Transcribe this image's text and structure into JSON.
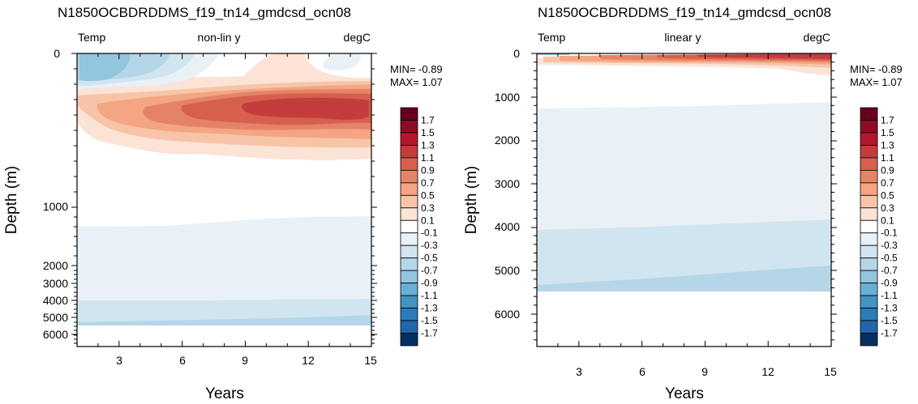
{
  "chart_data": [
    {
      "type": "contour",
      "title": "N1850OCBDRDDMS_f19_tn14_gmdcsd_ocn08",
      "left_label": "Temp",
      "center_label": "non-lin y",
      "right_label": "degC",
      "xlabel": "Years",
      "ylabel": "Depth (m)",
      "xlim": [
        1,
        15
      ],
      "ylim": [
        0,
        6500
      ],
      "x_ticks": [
        "3",
        "6",
        "9",
        "12",
        "15"
      ],
      "y_ticks": [
        "0",
        "1000",
        "2000",
        "3000",
        "4000",
        "5000",
        "6000"
      ],
      "y_scale": "non-linear",
      "min_label": "MIN= -0.89",
      "max_label": "MAX=  1.07",
      "features": [
        {
          "name": "surface cold anomaly",
          "value": -0.7,
          "years": [
            1,
            4
          ],
          "depth_m": [
            0,
            100
          ]
        },
        {
          "name": "subsurface warm anomaly",
          "value": 1.1,
          "years": [
            4,
            15
          ],
          "depth_m": [
            200,
            500
          ]
        },
        {
          "name": "deep cool layer",
          "value": -0.1,
          "years": [
            1,
            15
          ],
          "depth_m": [
            1100,
            4000
          ]
        },
        {
          "name": "abyssal cool layer",
          "value": -0.5,
          "years": [
            1,
            15
          ],
          "depth_m": [
            4000,
            5500
          ]
        }
      ]
    },
    {
      "type": "contour",
      "title": "N1850OCBDRDDMS_f19_tn14_gmdcsd_ocn08",
      "left_label": "Temp",
      "center_label": "linear y",
      "right_label": "degC",
      "xlabel": "Years",
      "ylabel": "Depth (m)",
      "xlim": [
        1,
        15
      ],
      "ylim": [
        0,
        6800
      ],
      "x_ticks": [
        "3",
        "6",
        "9",
        "12",
        "15"
      ],
      "y_ticks": [
        "0",
        "1000",
        "2000",
        "3000",
        "4000",
        "5000",
        "6000"
      ],
      "y_scale": "linear",
      "min_label": "MIN= -0.89",
      "max_label": "MAX=  1.07",
      "features": [
        {
          "name": "near-surface warm anomaly",
          "value": 1.1,
          "years": [
            1,
            15
          ],
          "depth_m": [
            0,
            300
          ]
        },
        {
          "name": "deep cool layer",
          "value": -0.1,
          "years": [
            1,
            15
          ],
          "depth_m": [
            1200,
            4000
          ]
        },
        {
          "name": "abyssal cool layer",
          "value": -0.5,
          "years": [
            1,
            15
          ],
          "depth_m": [
            4000,
            5500
          ]
        }
      ]
    }
  ],
  "colorbar": {
    "labels": [
      "1.7",
      "1.5",
      "1.3",
      "1.1",
      "0.9",
      "0.7",
      "0.5",
      "0.3",
      "0.1",
      "-0.1",
      "-0.3",
      "-0.5",
      "-0.7",
      "-0.9",
      "-1.1",
      "-1.3",
      "-1.5",
      "-1.7"
    ],
    "colors": [
      "#67001f",
      "#8c0d25",
      "#b2182b",
      "#c43c3c",
      "#d6604d",
      "#e58368",
      "#f4a582",
      "#f8c4a8",
      "#fbe3d6",
      "#ffffff",
      "#e9f1f7",
      "#d1e5f0",
      "#b4d6e8",
      "#92c5de",
      "#6aaed3",
      "#4393c3",
      "#2c7bb6",
      "#2166ac",
      "#053061"
    ]
  }
}
